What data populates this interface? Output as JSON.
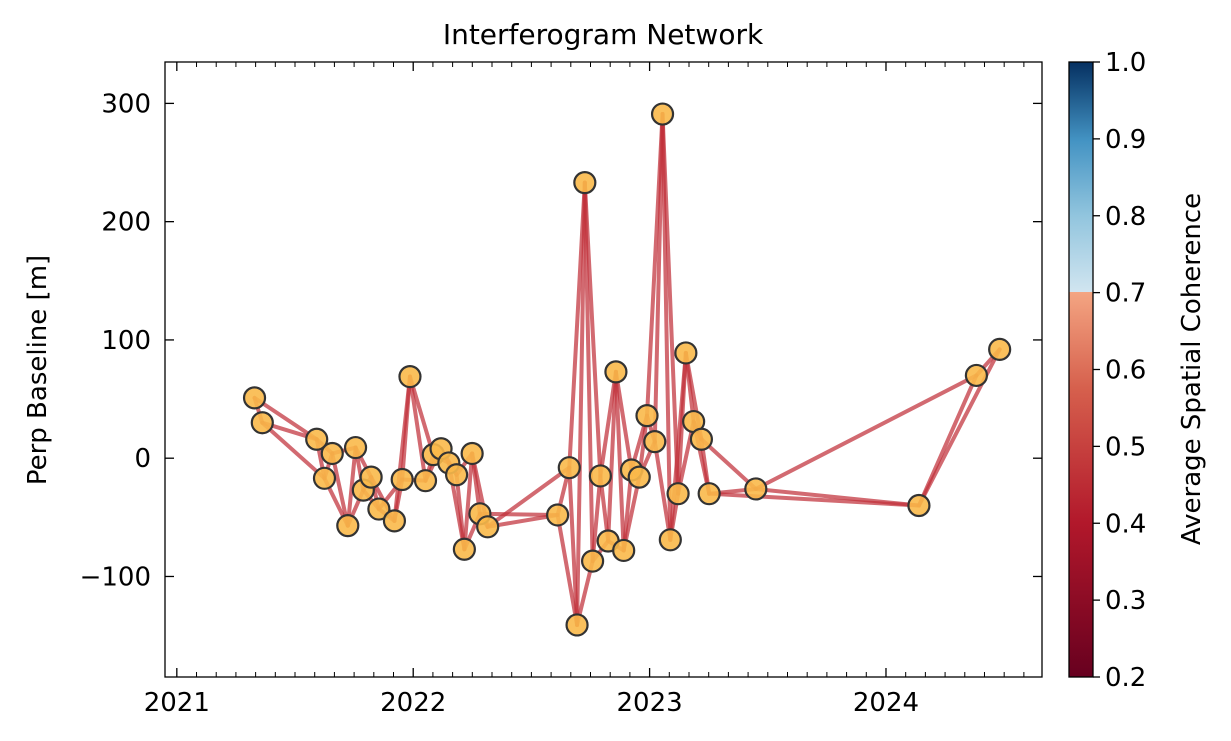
{
  "chart_data": {
    "type": "scatter",
    "title": "Interferogram Network",
    "xlabel": "",
    "ylabel": "Perp Baseline [m]",
    "xlim": [
      2020.95,
      2024.66
    ],
    "ylim": [
      -185,
      335
    ],
    "x_ticks": [
      2021,
      2022,
      2023,
      2024
    ],
    "x_tick_labels": [
      "2021",
      "2022",
      "2023",
      "2024"
    ],
    "y_ticks": [
      -100,
      0,
      100,
      200,
      300
    ],
    "y_tick_labels": [
      "−100",
      "0",
      "100",
      "200",
      "300"
    ],
    "grid": false,
    "colorbar": {
      "label": "Average Spatial Coherence",
      "range": [
        0.2,
        1.0
      ],
      "ticks": [
        "0.2",
        "0.3",
        "0.4",
        "0.5",
        "0.6",
        "0.7",
        "0.8",
        "0.9",
        "1.0"
      ],
      "display_threshold": 0.7,
      "colormap": "RdBu"
    },
    "edge_color": "#c0303a",
    "marker_color": "#f9b94a",
    "marker_edge_color": "#333333",
    "acquisitions": [
      {
        "date": "2021-05-01",
        "bperp": 51
      },
      {
        "date": "2021-05-13",
        "bperp": 30
      },
      {
        "date": "2021-08-05",
        "bperp": 16
      },
      {
        "date": "2021-08-17",
        "bperp": -17
      },
      {
        "date": "2021-08-29",
        "bperp": 4
      },
      {
        "date": "2021-09-22",
        "bperp": -57
      },
      {
        "date": "2021-10-04",
        "bperp": 9
      },
      {
        "date": "2021-10-16",
        "bperp": -27
      },
      {
        "date": "2021-10-28",
        "bperp": -16
      },
      {
        "date": "2021-11-09",
        "bperp": -43
      },
      {
        "date": "2021-12-03",
        "bperp": -53
      },
      {
        "date": "2021-12-15",
        "bperp": -18
      },
      {
        "date": "2021-12-27",
        "bperp": 69
      },
      {
        "date": "2022-01-20",
        "bperp": -19
      },
      {
        "date": "2022-02-01",
        "bperp": 3
      },
      {
        "date": "2022-02-13",
        "bperp": 8
      },
      {
        "date": "2022-02-25",
        "bperp": -4
      },
      {
        "date": "2022-03-09",
        "bperp": -14
      },
      {
        "date": "2022-03-21",
        "bperp": -77
      },
      {
        "date": "2022-04-02",
        "bperp": 4
      },
      {
        "date": "2022-04-14",
        "bperp": -47
      },
      {
        "date": "2022-04-26",
        "bperp": -58
      },
      {
        "date": "2022-08-12",
        "bperp": -48
      },
      {
        "date": "2022-08-30",
        "bperp": -8
      },
      {
        "date": "2022-09-11",
        "bperp": -141
      },
      {
        "date": "2022-09-23",
        "bperp": 233
      },
      {
        "date": "2022-10-05",
        "bperp": -87
      },
      {
        "date": "2022-10-17",
        "bperp": -15
      },
      {
        "date": "2022-10-29",
        "bperp": -70
      },
      {
        "date": "2022-11-10",
        "bperp": 73
      },
      {
        "date": "2022-11-22",
        "bperp": -78
      },
      {
        "date": "2022-12-04",
        "bperp": -10
      },
      {
        "date": "2022-12-16",
        "bperp": -16
      },
      {
        "date": "2022-12-28",
        "bperp": 36
      },
      {
        "date": "2023-01-09",
        "bperp": 14
      },
      {
        "date": "2023-01-21",
        "bperp": 291
      },
      {
        "date": "2023-02-02",
        "bperp": -69
      },
      {
        "date": "2023-02-14",
        "bperp": -30
      },
      {
        "date": "2023-02-26",
        "bperp": 89
      },
      {
        "date": "2023-03-10",
        "bperp": 31
      },
      {
        "date": "2023-03-22",
        "bperp": 16
      },
      {
        "date": "2023-04-03",
        "bperp": -30
      },
      {
        "date": "2023-06-14",
        "bperp": -26
      },
      {
        "date": "2024-02-21",
        "bperp": -40
      },
      {
        "date": "2024-05-20",
        "bperp": 70
      },
      {
        "date": "2024-06-25",
        "bperp": 92
      }
    ],
    "pairs": [
      [
        0,
        1
      ],
      [
        0,
        2
      ],
      [
        1,
        2
      ],
      [
        1,
        3
      ],
      [
        2,
        3
      ],
      [
        2,
        4
      ],
      [
        3,
        4
      ],
      [
        3,
        5
      ],
      [
        4,
        5
      ],
      [
        4,
        6
      ],
      [
        5,
        6
      ],
      [
        5,
        7
      ],
      [
        6,
        7
      ],
      [
        6,
        8
      ],
      [
        7,
        8
      ],
      [
        7,
        9
      ],
      [
        8,
        9
      ],
      [
        8,
        10
      ],
      [
        9,
        10
      ],
      [
        9,
        11
      ],
      [
        10,
        11
      ],
      [
        10,
        12
      ],
      [
        11,
        12
      ],
      [
        11,
        13
      ],
      [
        12,
        13
      ],
      [
        12,
        14
      ],
      [
        13,
        14
      ],
      [
        13,
        15
      ],
      [
        14,
        15
      ],
      [
        14,
        16
      ],
      [
        15,
        16
      ],
      [
        15,
        17
      ],
      [
        16,
        17
      ],
      [
        16,
        18
      ],
      [
        17,
        18
      ],
      [
        17,
        19
      ],
      [
        18,
        19
      ],
      [
        18,
        20
      ],
      [
        19,
        20
      ],
      [
        19,
        21
      ],
      [
        20,
        21
      ],
      [
        20,
        22
      ],
      [
        21,
        22
      ],
      [
        21,
        23
      ],
      [
        22,
        23
      ],
      [
        22,
        24
      ],
      [
        23,
        24
      ],
      [
        23,
        25
      ],
      [
        24,
        25
      ],
      [
        24,
        26
      ],
      [
        25,
        26
      ],
      [
        25,
        27
      ],
      [
        26,
        27
      ],
      [
        26,
        28
      ],
      [
        27,
        28
      ],
      [
        27,
        29
      ],
      [
        28,
        29
      ],
      [
        28,
        30
      ],
      [
        29,
        30
      ],
      [
        29,
        31
      ],
      [
        30,
        31
      ],
      [
        30,
        32
      ],
      [
        31,
        32
      ],
      [
        31,
        33
      ],
      [
        32,
        33
      ],
      [
        32,
        34
      ],
      [
        33,
        34
      ],
      [
        33,
        35
      ],
      [
        34,
        35
      ],
      [
        34,
        36
      ],
      [
        35,
        36
      ],
      [
        35,
        37
      ],
      [
        36,
        37
      ],
      [
        36,
        38
      ],
      [
        37,
        38
      ],
      [
        37,
        39
      ],
      [
        38,
        39
      ],
      [
        38,
        40
      ],
      [
        39,
        40
      ],
      [
        39,
        41
      ],
      [
        40,
        41
      ],
      [
        40,
        42
      ],
      [
        41,
        42
      ],
      [
        41,
        43
      ],
      [
        42,
        43
      ],
      [
        42,
        44
      ],
      [
        43,
        44
      ],
      [
        43,
        45
      ],
      [
        44,
        45
      ]
    ]
  }
}
